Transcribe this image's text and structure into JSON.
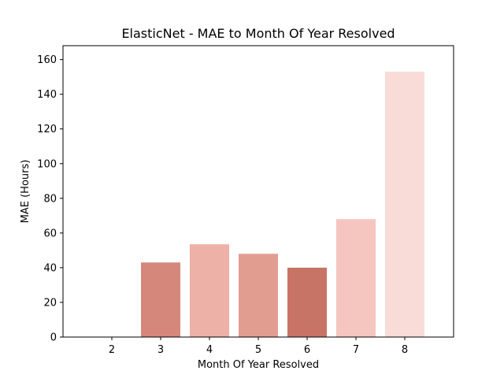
{
  "chart_data": {
    "type": "bar",
    "title": "ElasticNet - MAE to Month Of Year Resolved",
    "xlabel": "Month Of Year Resolved",
    "ylabel": "MAE (Hours)",
    "categories": [
      "2",
      "3",
      "4",
      "5",
      "6",
      "7",
      "8"
    ],
    "values": [
      0,
      43,
      53.5,
      48,
      40,
      68,
      153
    ],
    "bar_colors": [
      "#c97264",
      "#d4877a",
      "#edb1a7",
      "#e29d91",
      "#c77366",
      "#f5c6bf",
      "#f9dcd7"
    ],
    "ylim": [
      0,
      168
    ],
    "yticks": [
      0,
      20,
      40,
      60,
      80,
      100,
      120,
      140,
      160
    ],
    "grid": false,
    "legend": "none"
  }
}
